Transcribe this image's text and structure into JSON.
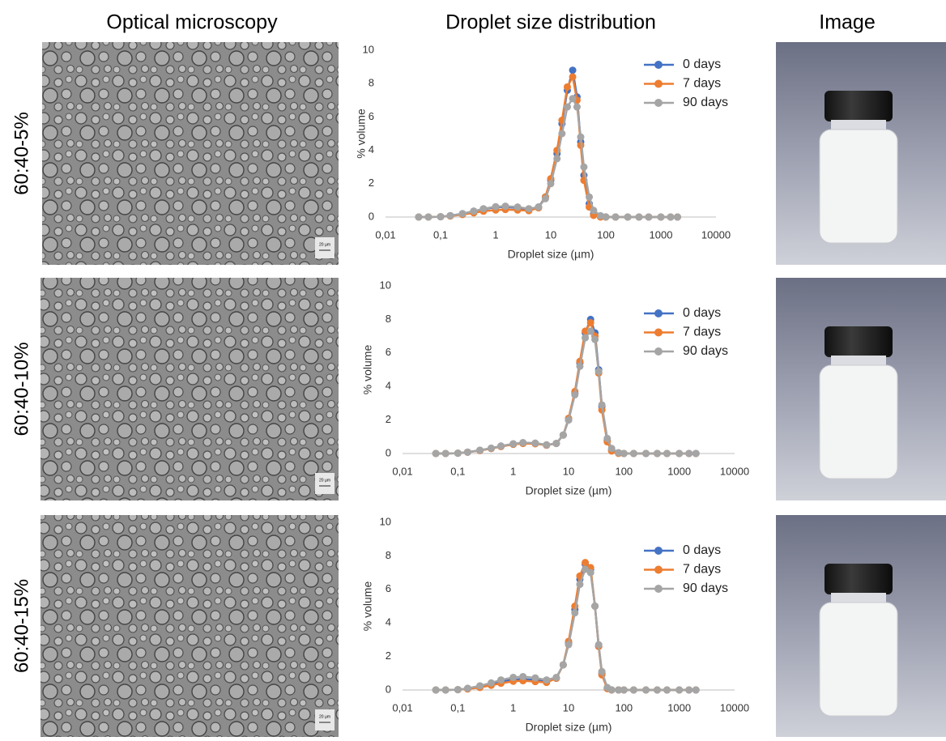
{
  "column_headers": [
    "Optical microscopy",
    "Droplet size distribution",
    "Image"
  ],
  "row_labels": [
    "60:40-5%",
    "60:40-10%",
    "60:40-15%"
  ],
  "scale_bar": "20 µm",
  "chart_data": [
    {
      "type": "line",
      "x_label": "Droplet size (µm)",
      "y_label": "% volume",
      "log_x": true,
      "markers": true,
      "x": [
        0.04,
        0.06,
        0.1,
        0.15,
        0.25,
        0.4,
        0.6,
        1,
        1.5,
        2.5,
        4,
        6,
        8,
        10,
        13,
        16,
        20,
        25,
        30,
        35,
        40,
        50,
        60,
        80,
        100,
        150,
        250,
        400,
        600,
        1000,
        1500,
        2000
      ],
      "series": [
        {
          "name": "0 days",
          "color": "#4472c4",
          "values": [
            0,
            0,
            0.02,
            0.08,
            0.2,
            0.35,
            0.48,
            0.58,
            0.6,
            0.55,
            0.45,
            0.6,
            1.2,
            2.2,
            3.8,
            5.6,
            7.6,
            8.8,
            7.2,
            4.5,
            2.5,
            0.8,
            0.2,
            0.02,
            0,
            0,
            0,
            0,
            0,
            0,
            0,
            0
          ]
        },
        {
          "name": "7 days",
          "color": "#ed7d31",
          "values": [
            0,
            0,
            0.02,
            0.06,
            0.15,
            0.25,
            0.35,
            0.42,
            0.45,
            0.42,
            0.38,
            0.55,
            1.2,
            2.3,
            4,
            5.8,
            7.8,
            8.4,
            7,
            4.3,
            2.2,
            0.6,
            0.1,
            0,
            0,
            0,
            0,
            0,
            0,
            0,
            0,
            0
          ]
        },
        {
          "name": "90 days",
          "color": "#a5a5a5",
          "values": [
            0,
            0,
            0.02,
            0.08,
            0.2,
            0.35,
            0.5,
            0.62,
            0.65,
            0.6,
            0.5,
            0.6,
            1.1,
            2,
            3.5,
            5,
            6.6,
            7.1,
            6.6,
            4.8,
            3,
            1.2,
            0.4,
            0.08,
            0.01,
            0,
            0,
            0,
            0,
            0,
            0,
            0
          ]
        }
      ],
      "xlim": [
        0.01,
        10000
      ],
      "xticks": [
        {
          "value": 0.01,
          "label": "0,01"
        },
        {
          "value": 0.1,
          "label": "0,1"
        },
        1,
        10,
        100,
        1000,
        10000
      ],
      "ylim": [
        0,
        10
      ],
      "yticks": [
        0,
        2,
        4,
        6,
        8,
        10
      ]
    },
    {
      "type": "line",
      "x_label": "Droplet size (µm)",
      "y_label": "% volume",
      "log_x": true,
      "markers": true,
      "x": [
        0.04,
        0.06,
        0.1,
        0.15,
        0.25,
        0.4,
        0.6,
        1,
        1.5,
        2.5,
        4,
        6,
        8,
        10,
        13,
        16,
        20,
        25,
        30,
        35,
        40,
        50,
        60,
        80,
        100,
        150,
        250,
        400,
        600,
        1000,
        1500,
        2000
      ],
      "series": [
        {
          "name": "0 days",
          "color": "#4472c4",
          "values": [
            0,
            0,
            0.02,
            0.08,
            0.18,
            0.3,
            0.42,
            0.55,
            0.62,
            0.6,
            0.5,
            0.6,
            1.1,
            2,
            3.6,
            5.4,
            7.2,
            8,
            7.2,
            5,
            2.8,
            0.8,
            0.2,
            0.02,
            0,
            0,
            0,
            0,
            0,
            0,
            0,
            0
          ]
        },
        {
          "name": "7 days",
          "color": "#ed7d31",
          "values": [
            0,
            0,
            0.02,
            0.08,
            0.18,
            0.3,
            0.42,
            0.55,
            0.6,
            0.58,
            0.5,
            0.6,
            1.1,
            2.1,
            3.7,
            5.5,
            7.3,
            7.8,
            7,
            4.8,
            2.6,
            0.7,
            0.15,
            0.01,
            0,
            0,
            0,
            0,
            0,
            0,
            0,
            0
          ]
        },
        {
          "name": "90 days",
          "color": "#a5a5a5",
          "values": [
            0,
            0,
            0.02,
            0.08,
            0.2,
            0.32,
            0.45,
            0.58,
            0.65,
            0.62,
            0.52,
            0.6,
            1.1,
            2,
            3.5,
            5.2,
            6.9,
            7.3,
            6.8,
            4.9,
            2.9,
            0.9,
            0.3,
            0.05,
            0,
            0,
            0,
            0,
            0,
            0,
            0,
            0
          ]
        }
      ],
      "xlim": [
        0.01,
        10000
      ],
      "xticks": [
        {
          "value": 0.01,
          "label": "0,01"
        },
        {
          "value": 0.1,
          "label": "0,1"
        },
        1,
        10,
        100,
        1000,
        10000
      ],
      "ylim": [
        0,
        10
      ],
      "yticks": [
        0,
        2,
        4,
        6,
        8,
        10
      ]
    },
    {
      "type": "line",
      "x_label": "Droplet size (µm)",
      "y_label": "% volume",
      "log_x": true,
      "markers": true,
      "x": [
        0.04,
        0.06,
        0.1,
        0.15,
        0.25,
        0.4,
        0.6,
        1,
        1.5,
        2.5,
        4,
        6,
        8,
        10,
        13,
        16,
        20,
        25,
        30,
        35,
        40,
        50,
        60,
        80,
        100,
        150,
        250,
        400,
        600,
        1000,
        1500,
        2000
      ],
      "series": [
        {
          "name": "0 days",
          "color": "#4472c4",
          "values": [
            0,
            0,
            0.02,
            0.08,
            0.2,
            0.35,
            0.5,
            0.62,
            0.65,
            0.6,
            0.5,
            0.7,
            1.5,
            2.8,
            4.8,
            6.6,
            7.5,
            7.2,
            5,
            2.6,
            1,
            0.1,
            0,
            0,
            0,
            0,
            0,
            0,
            0,
            0,
            0,
            0
          ]
        },
        {
          "name": "7 days",
          "color": "#ed7d31",
          "values": [
            0,
            0,
            0.02,
            0.06,
            0.15,
            0.28,
            0.4,
            0.52,
            0.55,
            0.5,
            0.45,
            0.7,
            1.5,
            2.9,
            5,
            6.8,
            7.6,
            7.3,
            5,
            2.6,
            0.9,
            0.08,
            0,
            0,
            0,
            0,
            0,
            0,
            0,
            0,
            0,
            0
          ]
        },
        {
          "name": "90 days",
          "color": "#a5a5a5",
          "values": [
            0,
            0,
            0.02,
            0.1,
            0.25,
            0.42,
            0.6,
            0.75,
            0.8,
            0.72,
            0.6,
            0.75,
            1.5,
            2.7,
            4.6,
            6.3,
            7.2,
            7,
            5,
            2.7,
            1.1,
            0.15,
            0.01,
            0,
            0,
            0,
            0,
            0,
            0,
            0,
            0,
            0
          ]
        }
      ],
      "xlim": [
        0.01,
        10000
      ],
      "xticks": [
        {
          "value": 0.01,
          "label": "0,01"
        },
        {
          "value": 0.1,
          "label": "0,1"
        },
        1,
        10,
        100,
        1000,
        10000
      ],
      "ylim": [
        0,
        10
      ],
      "yticks": [
        0,
        2,
        4,
        6,
        8,
        10
      ]
    }
  ]
}
